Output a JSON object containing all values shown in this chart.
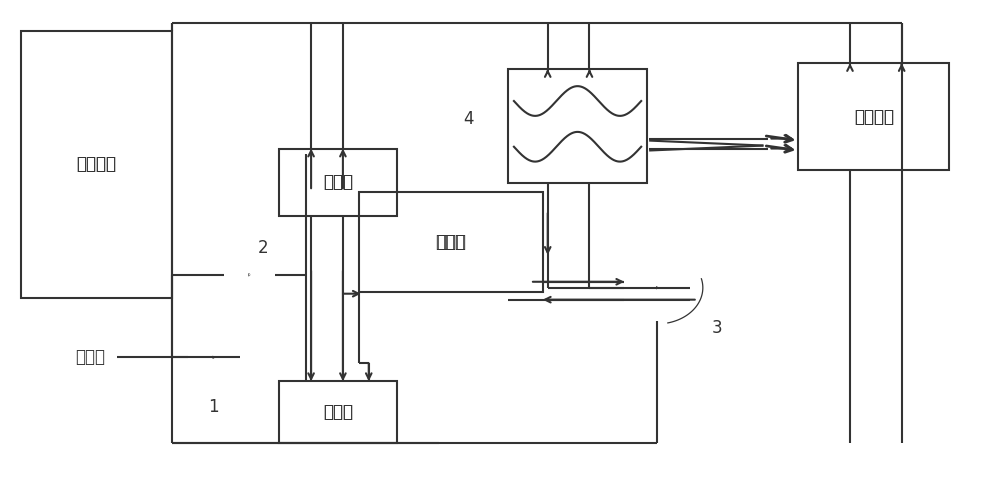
{
  "bg_color": "#ffffff",
  "lc": "#333333",
  "lw": 1.5,
  "boxes": {
    "cold": [
      18,
      30,
      152,
      268
    ],
    "dist": [
      278,
      148,
      118,
      68
    ],
    "rad": [
      358,
      192,
      185,
      100
    ],
    "hex": [
      508,
      68,
      140,
      115
    ],
    "fresh": [
      800,
      62,
      152,
      108
    ],
    "coll": [
      278,
      382,
      118,
      62
    ]
  },
  "labels": {
    "cold": [
      94,
      164,
      "冷水机组"
    ],
    "dist": [
      337,
      182,
      "分水器"
    ],
    "rad": [
      450,
      242,
      "辐射板"
    ],
    "fresh": [
      876,
      116,
      "新风机组"
    ],
    "coll": [
      337,
      413,
      "集水器"
    ],
    "zls": [
      88,
      358,
      "自来水"
    ],
    "num1": [
      212,
      408,
      "1"
    ],
    "num2": [
      262,
      248,
      "2"
    ],
    "num3": [
      718,
      328,
      "3"
    ],
    "num4": [
      468,
      118,
      "4"
    ]
  },
  "pumps": {
    "p1": [
      212,
      358,
      0.026
    ],
    "p2": [
      248,
      275,
      0.026
    ],
    "p3": [
      658,
      288,
      0.033
    ]
  }
}
